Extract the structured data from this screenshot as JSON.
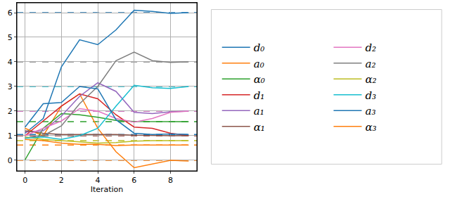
{
  "chart_data": {
    "type": "line",
    "x_label": "Iteration",
    "x": [
      0,
      1,
      2,
      3,
      4,
      5,
      6,
      7,
      8,
      9
    ],
    "xlim": [
      -0.45,
      9.45
    ],
    "xticks": [
      0,
      2,
      4,
      6,
      8
    ],
    "ylim": [
      -0.43,
      6.4
    ],
    "yticks": [
      0,
      1,
      2,
      3,
      4,
      5,
      6
    ],
    "grid": true,
    "legend": "right",
    "line_style": "solid",
    "series": [
      {
        "name": "d₀",
        "color": "#1f77b4",
        "target": 6,
        "values": [
          1.1,
          1.7,
          3.8,
          4.9,
          4.7,
          5.3,
          6.1,
          6.05,
          5.97,
          6.0
        ]
      },
      {
        "name": "a₀",
        "color": "#ff7f0e",
        "target": 0,
        "values": [
          1.3,
          1.0,
          2.2,
          2.7,
          1.3,
          0.35,
          -0.3,
          -0.15,
          0.0,
          -0.03
        ]
      },
      {
        "name": "α₀",
        "color": "#2ca02c",
        "target": 1.57,
        "values": [
          0.02,
          1.3,
          1.9,
          1.85,
          1.75,
          1.62,
          1.58,
          1.57,
          1.57,
          1.57
        ]
      },
      {
        "name": "d₁",
        "color": "#d62728",
        "target": 1,
        "values": [
          1.0,
          1.6,
          2.2,
          2.7,
          2.5,
          1.85,
          1.35,
          1.3,
          1.1,
          1.0
        ]
      },
      {
        "name": "a₁",
        "color": "#9467bd",
        "target": 2,
        "values": [
          1.15,
          1.2,
          1.8,
          2.6,
          3.15,
          2.8,
          1.95,
          1.9,
          1.97,
          2.0
        ]
      },
      {
        "name": "α₁",
        "color": "#8c564b",
        "target": 1,
        "values": [
          1.2,
          1.1,
          1.05,
          1.05,
          1.05,
          1.05,
          1.02,
          1.0,
          1.0,
          1.0
        ]
      },
      {
        "name": "d₂",
        "color": "#e377c2",
        "target": 2,
        "values": [
          1.0,
          1.3,
          1.6,
          2.1,
          2.0,
          1.7,
          1.55,
          1.7,
          1.95,
          2.0
        ]
      },
      {
        "name": "a₂",
        "color": "#7f7f7f",
        "target": 4,
        "values": [
          0.9,
          1.0,
          1.4,
          2.3,
          3.0,
          4.05,
          4.4,
          4.05,
          3.98,
          4.0
        ]
      },
      {
        "name": "α₂",
        "color": "#bcbd22",
        "target": 0.8,
        "values": [
          0.95,
          0.85,
          0.8,
          0.75,
          0.7,
          0.72,
          0.78,
          0.8,
          0.8,
          0.8
        ]
      },
      {
        "name": "d₃",
        "color": "#17becf",
        "target": 3,
        "values": [
          0.9,
          0.95,
          0.85,
          1.0,
          1.3,
          2.2,
          3.05,
          2.95,
          2.92,
          3.0
        ]
      },
      {
        "name": "a₃",
        "color": "#1f77b4",
        "target": 1.05,
        "values": [
          1.35,
          2.3,
          2.35,
          3.0,
          2.9,
          1.65,
          1.1,
          1.05,
          1.07,
          1.05
        ]
      },
      {
        "name": "α₃",
        "color": "#ff7f0e",
        "target": 0.62,
        "values": [
          0.85,
          0.8,
          0.7,
          0.65,
          0.65,
          0.6,
          0.62,
          0.62,
          0.62,
          0.62
        ]
      }
    ]
  }
}
